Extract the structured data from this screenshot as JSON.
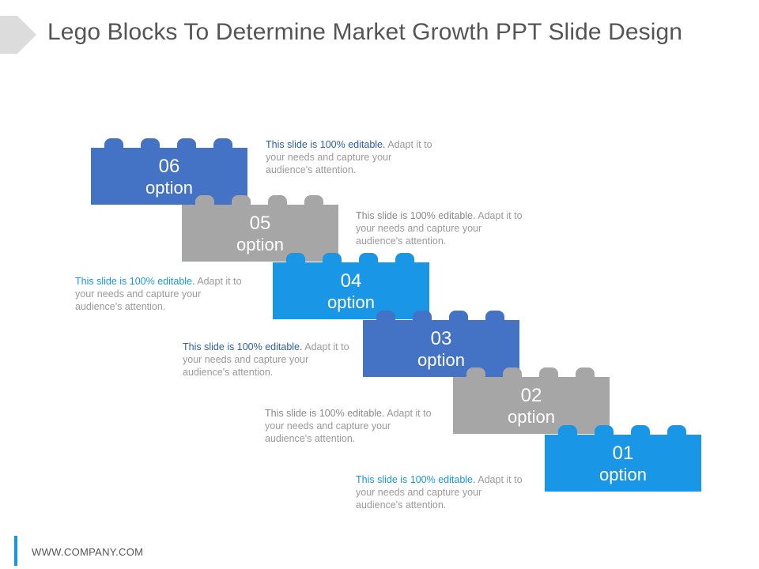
{
  "title": "Lego Blocks To Determine Market Growth PPT Slide Design",
  "colors": {
    "blue": "#4472c4",
    "grey": "#a6a6a6",
    "cyan": "#1a96e6"
  },
  "blocks": [
    {
      "number": "06",
      "label": "option",
      "color": "blue"
    },
    {
      "number": "05",
      "label": "option",
      "color": "grey"
    },
    {
      "number": "04",
      "label": "option",
      "color": "cyan"
    },
    {
      "number": "03",
      "label": "option",
      "color": "blue"
    },
    {
      "number": "02",
      "label": "option",
      "color": "grey"
    },
    {
      "number": "01",
      "label": "option",
      "color": "cyan"
    }
  ],
  "descriptions": [
    {
      "highlight": "This slide is 100% editable.",
      "rest": " Adapt it to your needs and capture your audience's attention."
    },
    {
      "highlight": "This slide is 100% editable.",
      "rest": " Adapt it to your needs and capture your audience's attention."
    },
    {
      "highlight": "This slide is 100% editable.",
      "rest": " Adapt it to your needs and capture your audience's attention."
    },
    {
      "highlight": "This slide is 100% editable.",
      "rest": " Adapt it to your needs and capture your audience's attention."
    },
    {
      "highlight": "This slide is 100% editable.",
      "rest": " Adapt it to your needs and capture your audience's attention."
    },
    {
      "highlight": "This slide is 100% editable.",
      "rest": " Adapt it to your needs and capture your audience's attention."
    }
  ],
  "footer": "WWW.COMPANY.COM"
}
